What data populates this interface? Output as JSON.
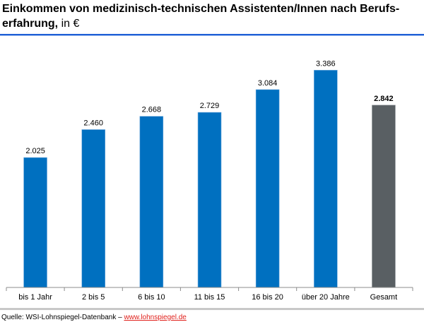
{
  "header": {
    "title_bold": "Einkommen von medizinisch-technischen Assistenten/Innen nach Berufs-erfahrung,",
    "title_line1": "Einkommen von medizinisch-technischen Assistenten/Innen nach Berufs-",
    "title_line2": "erfahrung,",
    "title_unit": "in €"
  },
  "footer": {
    "source_label": "Quelle: WSI-Lohnspiegel-Datenbank – ",
    "source_link": "www.lohnspiegel.de"
  },
  "colors": {
    "bar": "#0070c0",
    "total_bar": "#595f63",
    "title_rule": "#1f5fd6",
    "link": "#e0201b"
  },
  "chart_data": {
    "type": "bar",
    "title": "Einkommen von medizinisch-technischen Assistenten/Innen nach Berufserfahrung, in €",
    "xlabel": "",
    "ylabel": "",
    "categories": [
      "bis 1 Jahr",
      "2 bis 5",
      "6 bis 10",
      "11 bis 15",
      "16 bis 20",
      "über 20 Jahre",
      "Gesamt"
    ],
    "values": [
      2025,
      2460,
      2668,
      2729,
      3084,
      3386,
      2842
    ],
    "value_labels": [
      "2.025",
      "2.460",
      "2.668",
      "2.729",
      "3.084",
      "3.386",
      "2.842"
    ],
    "highlight": [
      false,
      false,
      false,
      false,
      false,
      false,
      true
    ],
    "ylim": [
      0,
      3600
    ],
    "grid": false,
    "legend": "none",
    "y_axis_visible": false
  }
}
